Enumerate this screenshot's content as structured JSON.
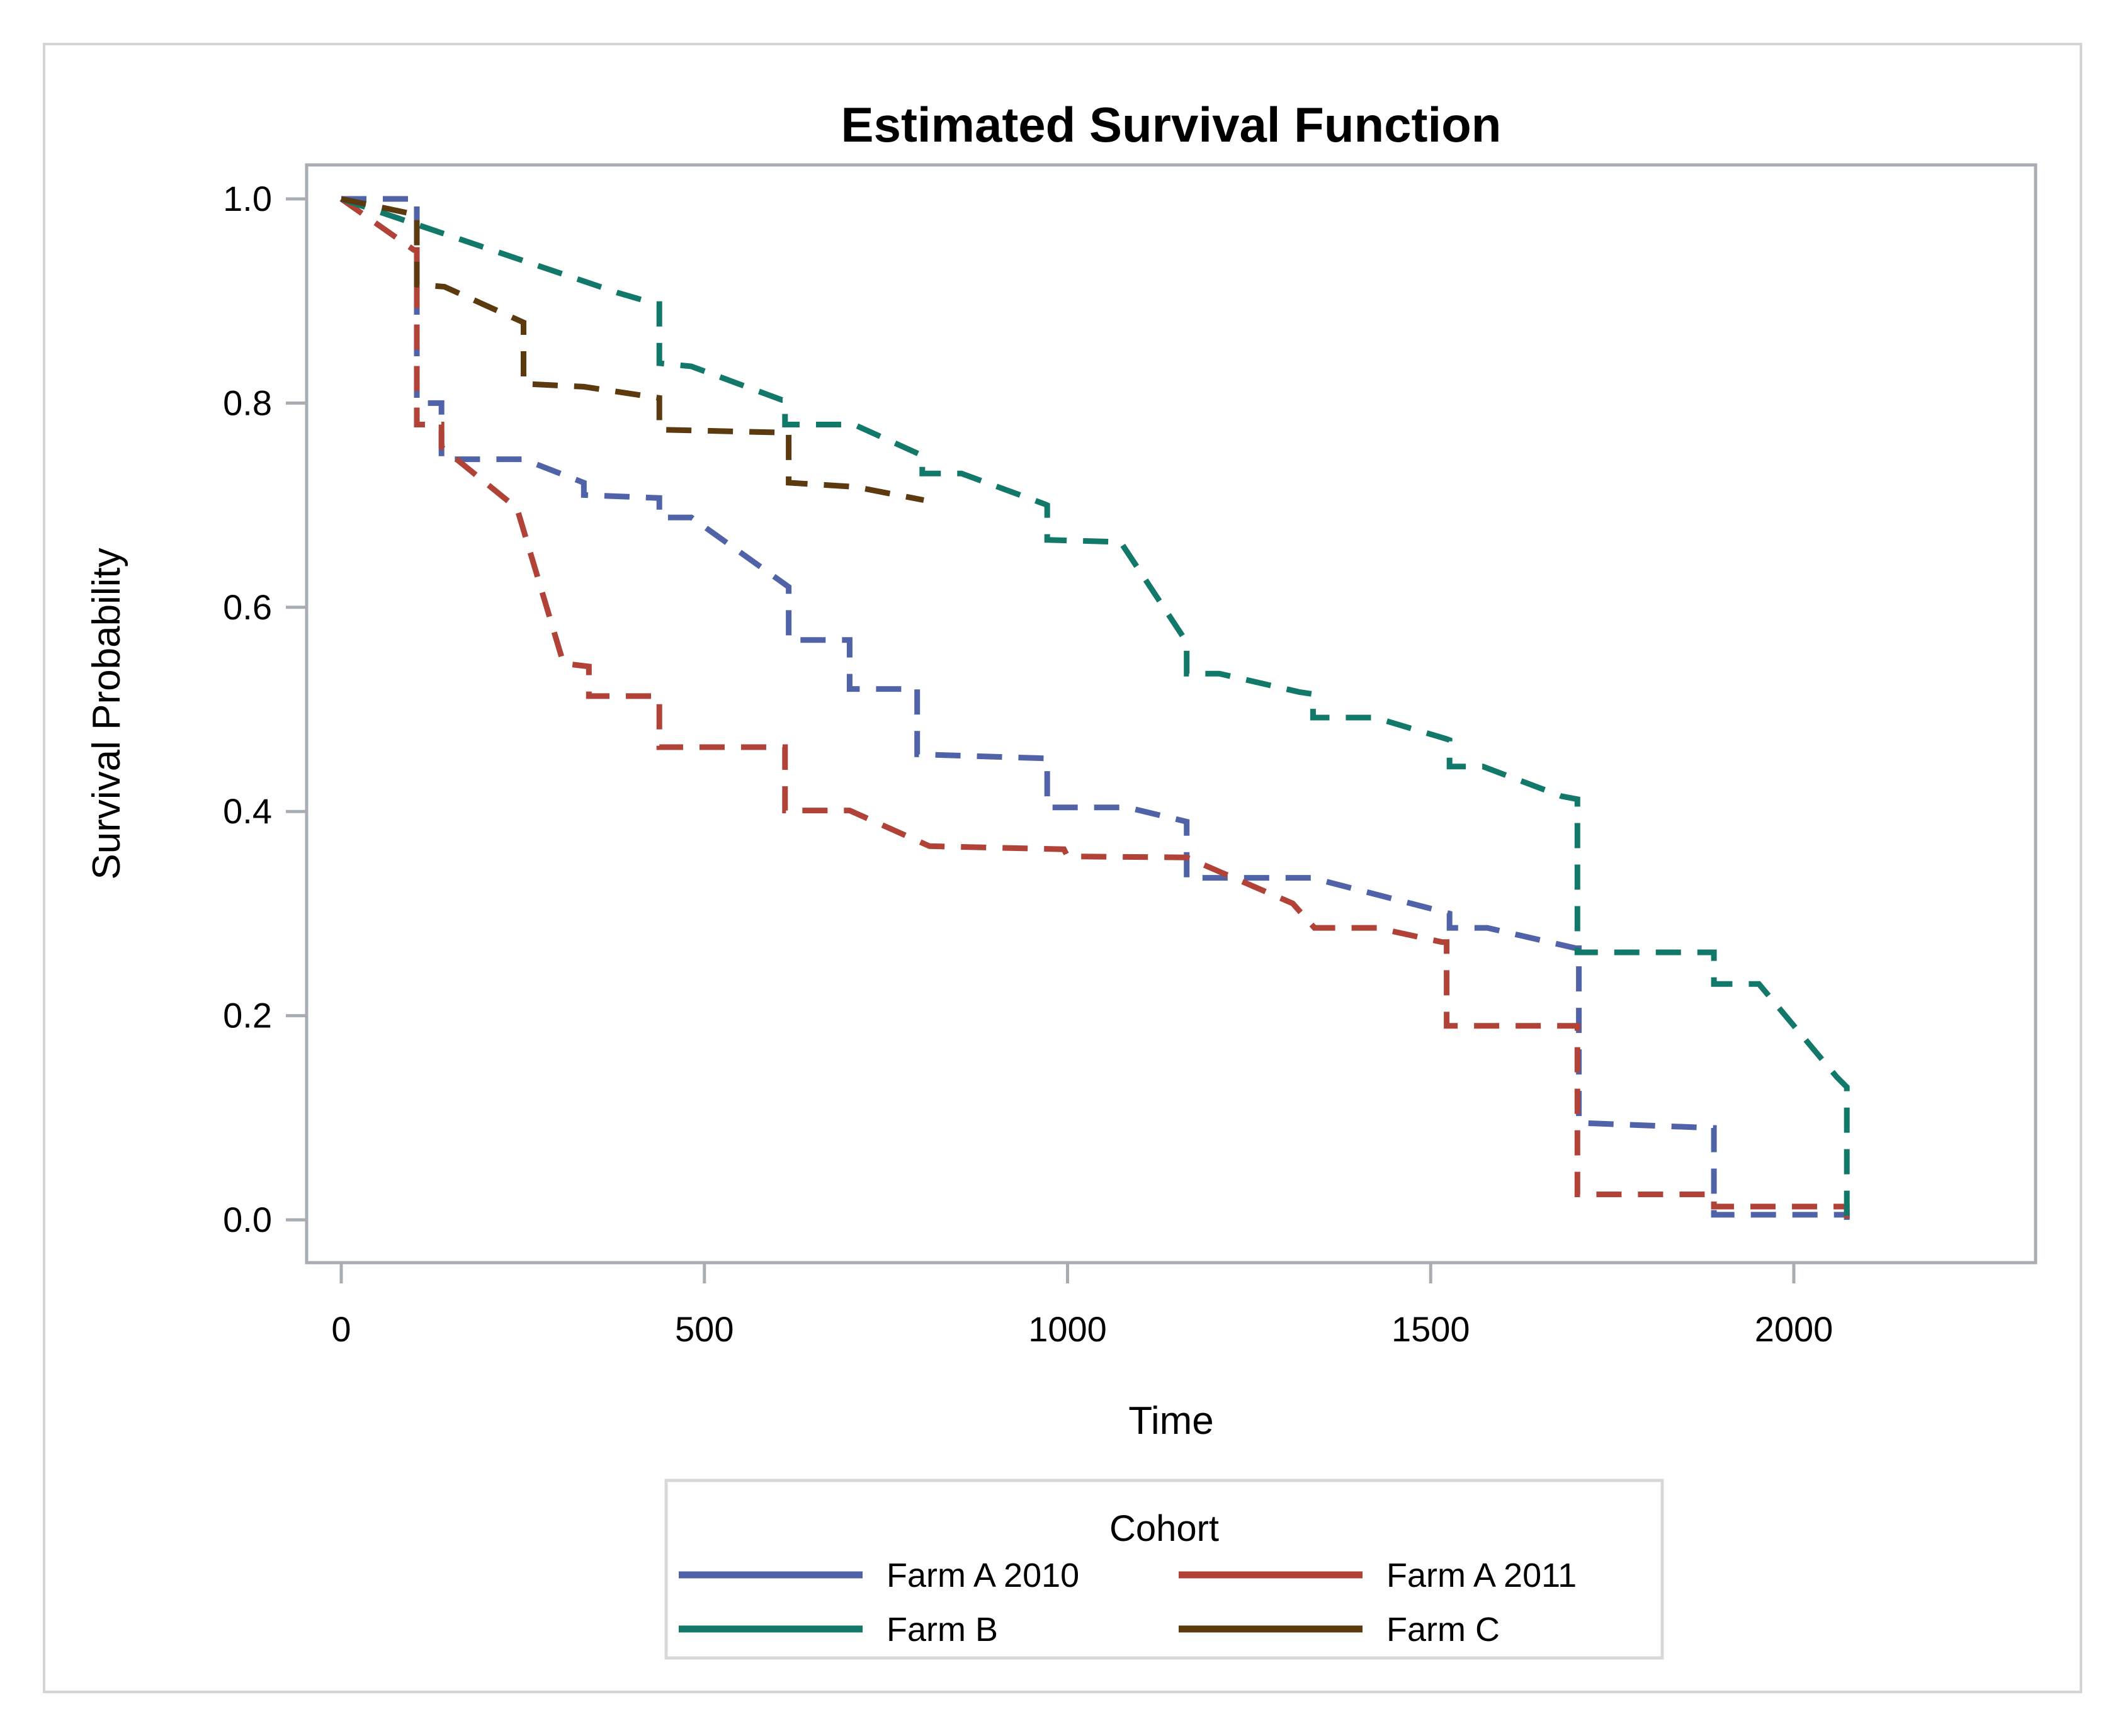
{
  "figure": {
    "title": "Estimated Survival Function",
    "x_axis_title": "Time",
    "y_axis_title": "Survival Probability",
    "legend_title": "Cohort"
  },
  "chart_data": {
    "type": "line",
    "subtype": "kaplan-meier-step",
    "title": "Estimated Survival Function",
    "xlabel": "Time",
    "ylabel": "Survival Probability",
    "xlim": [
      -47,
      2333
    ],
    "ylim": [
      -0.042,
      1.033
    ],
    "x_ticks": [
      0,
      500,
      1000,
      1500,
      2000
    ],
    "x_tick_labels": [
      "0",
      "500",
      "1000",
      "1500",
      "2000"
    ],
    "y_ticks": [
      1.0,
      0.8,
      0.6,
      0.4,
      0.2,
      0.0
    ],
    "y_tick_labels": [
      "1.0",
      "0.8",
      "0.6",
      "0.4",
      "0.2",
      "0.0"
    ],
    "grid": false,
    "legend_position": "bottom",
    "line_style": "dashed",
    "series": [
      {
        "name": "Farm A 2010",
        "color": "#5163a8",
        "points": [
          [
            0,
            1.0
          ],
          [
            104,
            1.0
          ],
          [
            104,
            0.8
          ],
          [
            138,
            0.8
          ],
          [
            138,
            0.745
          ],
          [
            251,
            0.745
          ],
          [
            334,
            0.722
          ],
          [
            334,
            0.71
          ],
          [
            438,
            0.707
          ],
          [
            438,
            0.688
          ],
          [
            482,
            0.688
          ],
          [
            616,
            0.62
          ],
          [
            616,
            0.568
          ],
          [
            700,
            0.568
          ],
          [
            700,
            0.52
          ],
          [
            793,
            0.52
          ],
          [
            793,
            0.456
          ],
          [
            972,
            0.452
          ],
          [
            972,
            0.404
          ],
          [
            1082,
            0.404
          ],
          [
            1164,
            0.39
          ],
          [
            1164,
            0.335
          ],
          [
            1336,
            0.335
          ],
          [
            1516,
            0.302
          ],
          [
            1526,
            0.3
          ],
          [
            1526,
            0.286
          ],
          [
            1578,
            0.286
          ],
          [
            1700,
            0.266
          ],
          [
            1704,
            0.266
          ],
          [
            1704,
            0.095
          ],
          [
            1890,
            0.09
          ],
          [
            1890,
            0.005
          ],
          [
            2073,
            0.005
          ],
          [
            2073,
            0.0
          ]
        ]
      },
      {
        "name": "Farm A 2011",
        "color": "#b04238",
        "points": [
          [
            0,
            1.0
          ],
          [
            100,
            0.95
          ],
          [
            104,
            0.95
          ],
          [
            104,
            0.779
          ],
          [
            138,
            0.779
          ],
          [
            138,
            0.757
          ],
          [
            242,
            0.697
          ],
          [
            306,
            0.545
          ],
          [
            341,
            0.542
          ],
          [
            341,
            0.513
          ],
          [
            438,
            0.513
          ],
          [
            438,
            0.463
          ],
          [
            611,
            0.463
          ],
          [
            611,
            0.401
          ],
          [
            700,
            0.401
          ],
          [
            810,
            0.366
          ],
          [
            995,
            0.363
          ],
          [
            1000,
            0.356
          ],
          [
            1164,
            0.355
          ],
          [
            1310,
            0.31
          ],
          [
            1340,
            0.286
          ],
          [
            1426,
            0.286
          ],
          [
            1516,
            0.272
          ],
          [
            1522,
            0.272
          ],
          [
            1522,
            0.19
          ],
          [
            1702,
            0.19
          ],
          [
            1702,
            0.025
          ],
          [
            1890,
            0.025
          ],
          [
            1890,
            0.013
          ],
          [
            2073,
            0.013
          ],
          [
            2073,
            0.0
          ]
        ]
      },
      {
        "name": "Farm B",
        "color": "#12796a",
        "points": [
          [
            0,
            1.0
          ],
          [
            381,
            0.908
          ],
          [
            434,
            0.897
          ],
          [
            438,
            0.897
          ],
          [
            438,
            0.839
          ],
          [
            482,
            0.836
          ],
          [
            607,
            0.803
          ],
          [
            611,
            0.803
          ],
          [
            611,
            0.779
          ],
          [
            706,
            0.779
          ],
          [
            799,
            0.749
          ],
          [
            800,
            0.749
          ],
          [
            800,
            0.731
          ],
          [
            854,
            0.731
          ],
          [
            969,
            0.701
          ],
          [
            972,
            0.7
          ],
          [
            972,
            0.666
          ],
          [
            1073,
            0.664
          ],
          [
            1162,
            0.568
          ],
          [
            1164,
            0.566
          ],
          [
            1164,
            0.535
          ],
          [
            1209,
            0.535
          ],
          [
            1319,
            0.517
          ],
          [
            1338,
            0.515
          ],
          [
            1338,
            0.492
          ],
          [
            1423,
            0.492
          ],
          [
            1522,
            0.471
          ],
          [
            1526,
            0.47
          ],
          [
            1526,
            0.444
          ],
          [
            1572,
            0.444
          ],
          [
            1680,
            0.415
          ],
          [
            1702,
            0.412
          ],
          [
            1702,
            0.262
          ],
          [
            1888,
            0.262
          ],
          [
            1890,
            0.262
          ],
          [
            1890,
            0.231
          ],
          [
            1952,
            0.231
          ],
          [
            2059,
            0.14
          ],
          [
            2073,
            0.13
          ],
          [
            2073,
            0.0
          ]
        ]
      },
      {
        "name": "Farm C",
        "color": "#5b3a10",
        "points": [
          [
            0,
            1.0
          ],
          [
            100,
            0.985
          ],
          [
            104,
            0.985
          ],
          [
            104,
            0.916
          ],
          [
            142,
            0.914
          ],
          [
            251,
            0.879
          ],
          [
            251,
            0.819
          ],
          [
            334,
            0.816
          ],
          [
            438,
            0.805
          ],
          [
            438,
            0.774
          ],
          [
            614,
            0.771
          ],
          [
            616,
            0.771
          ],
          [
            616,
            0.722
          ],
          [
            707,
            0.718
          ],
          [
            802,
            0.705
          ]
        ]
      }
    ],
    "legend_entries": [
      {
        "label": "Farm A 2010",
        "color": "#5163a8"
      },
      {
        "label": "Farm A 2011",
        "color": "#b04238"
      },
      {
        "label": "Farm B",
        "color": "#12796a"
      },
      {
        "label": "Farm C",
        "color": "#5b3a10"
      }
    ]
  },
  "style_colors": {
    "frame": "#a7adb2",
    "figure_border": "#d4d4d4",
    "legend_border": "#d8d8d8",
    "text": "#000000"
  }
}
